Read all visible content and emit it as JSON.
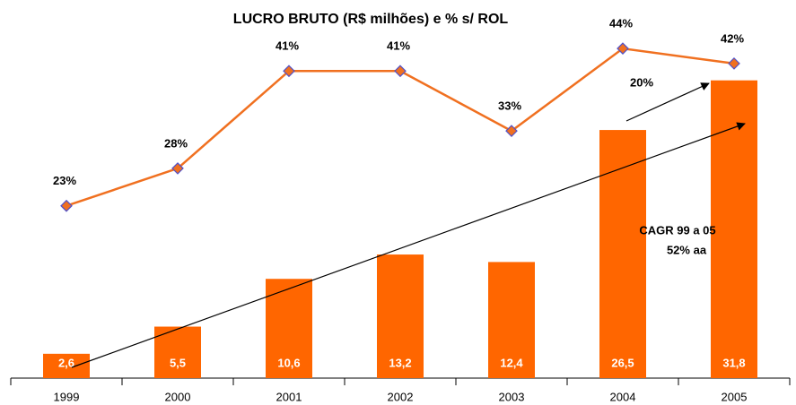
{
  "chart_data": {
    "type": "bar",
    "title": "LUCRO BRUTO (R$ milhões) e % s/ ROL",
    "categories": [
      "1999",
      "2000",
      "2001",
      "2002",
      "2003",
      "2004",
      "2005"
    ],
    "series": [
      {
        "type": "bar",
        "color": "#ff6600",
        "values": [
          2.6,
          5.5,
          10.6,
          13.2,
          12.4,
          26.5,
          31.8
        ],
        "value_labels": [
          "2,6",
          "5,5",
          "10,6",
          "13,2",
          "12,4",
          "26,5",
          "31,8"
        ]
      },
      {
        "type": "line",
        "axis": "y2",
        "color": "#f07020",
        "marker_color": "#5050c8",
        "values": [
          23,
          28,
          41,
          41,
          33,
          44,
          42
        ],
        "value_labels": [
          "23%",
          "28%",
          "41%",
          "41%",
          "33%",
          "44%",
          "42%"
        ]
      }
    ],
    "ylim": [
      0,
      40
    ],
    "y2lim": [
      0,
      50
    ],
    "annotations": [
      "20%",
      "CAGR 99 a 05",
      "52% aa"
    ]
  }
}
